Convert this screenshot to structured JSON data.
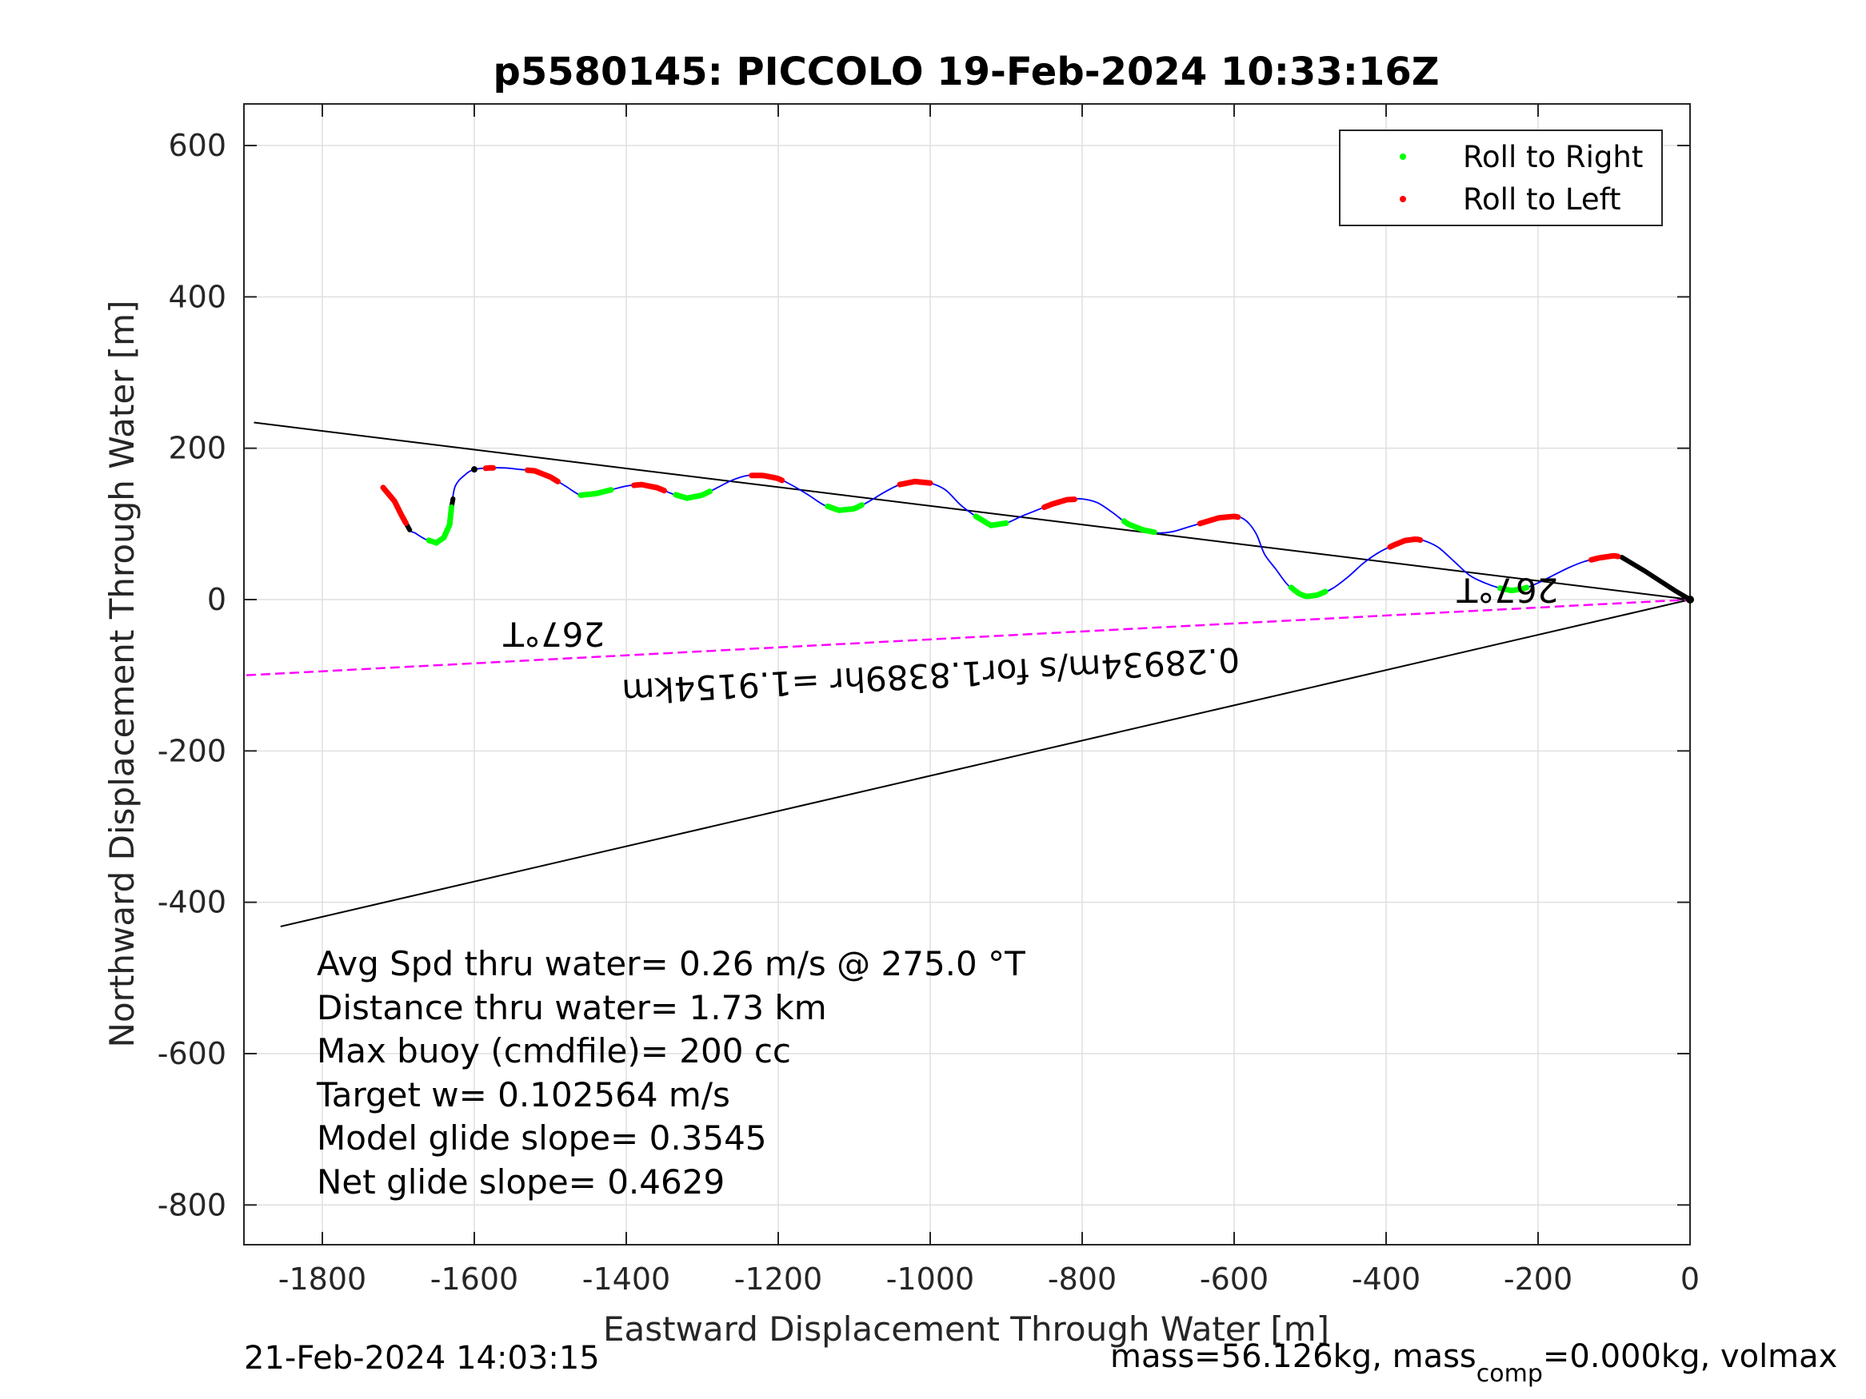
{
  "chart_data": {
    "type": "line",
    "title": "p5580145: PICCOLO 19-Feb-2024 10:33:16Z",
    "xlabel": "Eastward Displacement Through Water [m]",
    "ylabel": "Northward Displacement Through Water [m]",
    "xlim": [
      -1900,
      0
    ],
    "ylim": [
      -855,
      655
    ],
    "xticks": [
      -1800,
      -1600,
      -1400,
      -1200,
      -1000,
      -800,
      -600,
      -400,
      -200,
      0
    ],
    "yticks": [
      600,
      400,
      200,
      0,
      -200,
      -400,
      -600,
      -800
    ],
    "xtick_labels": [
      "-1800",
      "-1600",
      "-1400",
      "-1200",
      "-1000",
      "-800",
      "-600",
      "-400",
      "-200",
      "0"
    ],
    "ytick_labels": [
      "600",
      "400",
      "200",
      "0",
      "-200",
      "-400",
      "-600",
      "-800"
    ],
    "grid": true,
    "legend_position": "top-right",
    "legend": [
      {
        "label": "Roll to Right",
        "color": "#00ff00"
      },
      {
        "label": "Roll to Left",
        "color": "#ff0000"
      }
    ],
    "track": {
      "name": "glider track",
      "color": "#0000ff",
      "x": [
        -1720,
        -1705,
        -1695,
        -1685,
        -1678,
        -1665,
        -1650,
        -1640,
        -1632,
        -1630,
        -1625,
        -1612,
        -1600,
        -1580,
        -1560,
        -1540,
        -1520,
        -1500,
        -1480,
        -1460,
        -1440,
        -1420,
        -1400,
        -1380,
        -1360,
        -1340,
        -1320,
        -1300,
        -1280,
        -1260,
        -1240,
        -1220,
        -1200,
        -1180,
        -1160,
        -1140,
        -1120,
        -1100,
        -1080,
        -1060,
        -1040,
        -1020,
        -1000,
        -980,
        -960,
        -940,
        -920,
        -900,
        -880,
        -860,
        -840,
        -820,
        -800,
        -780,
        -760,
        -740,
        -720,
        -700,
        -680,
        -660,
        -640,
        -620,
        -600,
        -590,
        -580,
        -570,
        -560,
        -545,
        -530,
        -515,
        -505,
        -490,
        -470,
        -450,
        -430,
        -410,
        -390,
        -375,
        -360,
        -345,
        -330,
        -310,
        -290,
        -270,
        -250,
        -235,
        -220,
        -200,
        -180,
        -160,
        -140,
        -120,
        -100,
        -90,
        -80,
        -60,
        -40,
        -20,
        0
      ],
      "y": [
        148,
        130,
        110,
        92,
        88,
        80,
        75,
        82,
        100,
        122,
        150,
        165,
        172,
        174,
        174,
        172,
        170,
        162,
        150,
        138,
        140,
        145,
        150,
        152,
        148,
        140,
        134,
        138,
        148,
        158,
        164,
        164,
        160,
        150,
        138,
        125,
        118,
        120,
        130,
        142,
        152,
        156,
        154,
        145,
        125,
        110,
        98,
        101,
        110,
        118,
        126,
        132,
        133,
        128,
        115,
        100,
        92,
        88,
        90,
        96,
        102,
        108,
        110,
        108,
        100,
        85,
        60,
        40,
        20,
        8,
        4,
        6,
        15,
        30,
        48,
        62,
        72,
        78,
        80,
        76,
        68,
        50,
        32,
        22,
        15,
        12,
        14,
        22,
        32,
        42,
        50,
        55,
        58,
        56,
        50,
        38,
        25,
        12,
        0
      ]
    },
    "roll_right_segments": [
      {
        "x": [
          -1660,
          -1645,
          -1630
        ]
      },
      {
        "x": [
          -1460,
          -1435,
          -1420
        ]
      },
      {
        "x": [
          -1335,
          -1310,
          -1290
        ]
      },
      {
        "x": [
          -1135,
          -1110,
          -1090
        ]
      },
      {
        "x": [
          -940,
          -915,
          -900
        ]
      },
      {
        "x": [
          -745,
          -725,
          -705
        ]
      },
      {
        "x": [
          -525,
          -505,
          -480
        ]
      },
      {
        "x": [
          -250,
          -230,
          -215
        ]
      }
    ],
    "roll_left_segments": [
      {
        "x": [
          -1720,
          -1705,
          -1690
        ]
      },
      {
        "x": [
          -1585,
          -1575
        ]
      },
      {
        "x": [
          -1530,
          -1510,
          -1490
        ]
      },
      {
        "x": [
          -1390,
          -1370,
          -1350
        ]
      },
      {
        "x": [
          -1235,
          -1215,
          -1195
        ]
      },
      {
        "x": [
          -1040,
          -1020,
          -1000
        ]
      },
      {
        "x": [
          -850,
          -830,
          -810
        ]
      },
      {
        "x": [
          -645,
          -620,
          -595
        ]
      },
      {
        "x": [
          -395,
          -375,
          -355
        ]
      },
      {
        "x": [
          -130,
          -110,
          -95
        ]
      }
    ],
    "reference_lines": [
      {
        "name": "upper bound",
        "color": "#000000",
        "x": [
          -1890,
          0
        ],
        "y": [
          234,
          0
        ]
      },
      {
        "name": "lower bound",
        "color": "#000000",
        "x": [
          -1855,
          0
        ],
        "y": [
          -432,
          0
        ]
      },
      {
        "name": "depth-average current",
        "color": "#ff00ff",
        "x": [
          -1900,
          0
        ],
        "y": [
          -100,
          0
        ]
      }
    ],
    "annotations": [
      {
        "text": "267°T",
        "x": -1495,
        "y": -30,
        "rotation": 180
      },
      {
        "text": "267°T",
        "x": -240,
        "y": 28,
        "rotation": 180
      },
      {
        "text": "0.28934m/s for1.8389hr =1.9154km",
        "x": -1000,
        "y": -85,
        "rotation": 177
      }
    ],
    "stats": [
      "Avg Spd thru water=  0.26 m/s @ 275.0 °T",
      "Distance thru water=  1.73 km",
      "Max buoy (cmdfile)= 200 cc",
      "Target w= 0.102564 m/s",
      "Model glide slope= 0.3545",
      "Net glide slope= 0.4629"
    ],
    "footer_left": "21-Feb-2024 14:03:15",
    "footer_right_a": "mass=56.126kg, mass",
    "footer_right_sub": "comp",
    "footer_right_b": "=0.000kg, volmax"
  }
}
